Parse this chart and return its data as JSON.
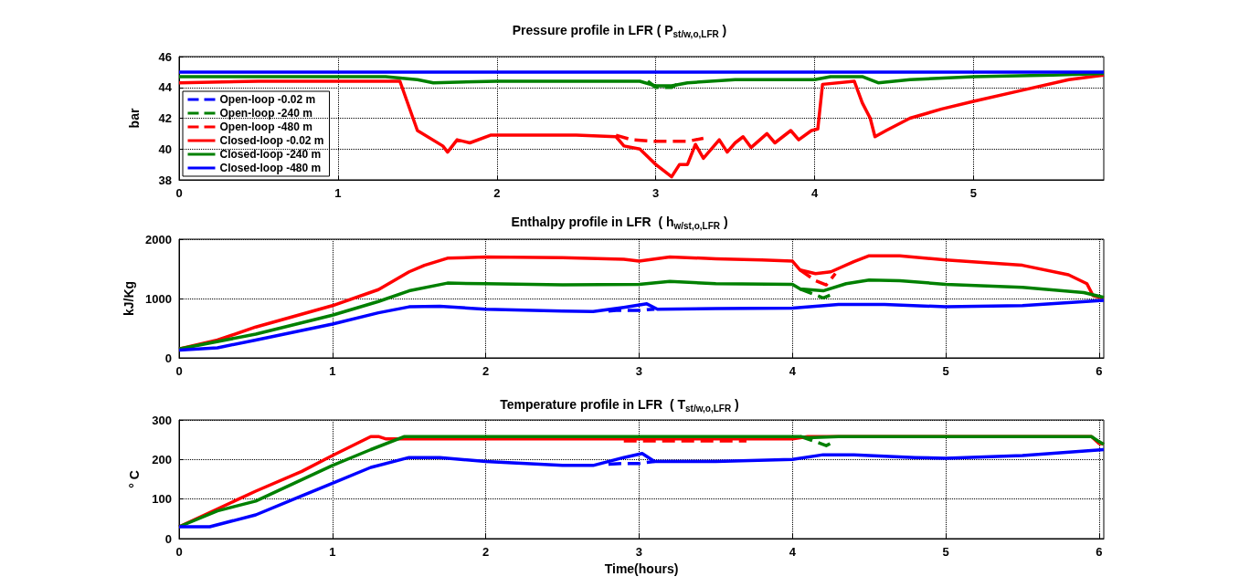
{
  "chart_data": [
    {
      "type": "line",
      "title": "Pressure profile in LFR ( P$_{st/w,o,LFR}$ )",
      "ylabel": "bar",
      "xlim": [
        0,
        5.82
      ],
      "xticks": [
        0,
        1,
        2,
        3,
        4,
        5
      ],
      "ylim": [
        38,
        46
      ],
      "yticks": [
        38,
        40,
        42,
        44,
        46
      ],
      "grid": true,
      "legend": "bottom left",
      "marker": "none",
      "series": [
        {
          "name": "Open-loop -0.02 m",
          "color": "#0000ff",
          "line_style": "dashed"
        },
        {
          "name": "Open-loop -240 m",
          "color": "#008000",
          "line_style": "dashed",
          "x": [
            2.95,
            3.0,
            3.1,
            3.15
          ],
          "values": [
            44.4,
            44.0,
            44.0,
            44.3
          ]
        },
        {
          "name": "Open-loop -480 m",
          "color": "#ff0000",
          "line_style": "dashed",
          "x": [
            2.75,
            2.85,
            3.0,
            3.2,
            3.3
          ],
          "values": [
            40.9,
            40.6,
            40.5,
            40.5,
            40.7
          ]
        },
        {
          "name": "Closed-loop -0.02 m",
          "color": "#ff0000",
          "line_style": "solid",
          "x": [
            0,
            0.5,
            1.0,
            1.39,
            1.5,
            1.66,
            1.69,
            1.75,
            1.83,
            1.96,
            2.5,
            2.75,
            2.8,
            2.9,
            3.0,
            3.1,
            3.15,
            3.2,
            3.25,
            3.3,
            3.4,
            3.45,
            3.5,
            3.55,
            3.6,
            3.7,
            3.75,
            3.85,
            3.9,
            3.98,
            4.02,
            4.05,
            4.25,
            4.3,
            4.35,
            4.38,
            4.45,
            4.6,
            4.8,
            5.0,
            5.3,
            5.6,
            5.82
          ],
          "values": [
            44.3,
            44.4,
            44.4,
            44.4,
            41.2,
            40.2,
            39.8,
            40.6,
            40.4,
            40.9,
            40.9,
            40.8,
            40.2,
            40.0,
            39.0,
            38.2,
            39.0,
            39.0,
            40.3,
            39.4,
            40.6,
            39.8,
            40.4,
            40.8,
            40.1,
            41.0,
            40.4,
            41.2,
            40.6,
            41.2,
            41.3,
            44.2,
            44.4,
            43.0,
            42.0,
            40.8,
            41.2,
            42.0,
            42.6,
            43.1,
            43.8,
            44.5,
            44.8
          ]
        },
        {
          "name": "Closed-loop -240 m",
          "color": "#008000",
          "line_style": "solid",
          "x": [
            0,
            1.3,
            1.5,
            1.6,
            2,
            2.5,
            2.9,
            3.0,
            3.1,
            3.2,
            3.5,
            4.0,
            4.1,
            4.3,
            4.4,
            4.6,
            5.0,
            5.5,
            5.82
          ],
          "values": [
            44.7,
            44.7,
            44.5,
            44.3,
            44.4,
            44.4,
            44.4,
            44.1,
            44.1,
            44.3,
            44.5,
            44.5,
            44.7,
            44.7,
            44.3,
            44.5,
            44.7,
            44.8,
            44.9
          ]
        },
        {
          "name": "Closed-loop -480 m",
          "color": "#0000ff",
          "line_style": "solid",
          "x": [
            0,
            5.82
          ],
          "values": [
            45,
            45
          ]
        }
      ]
    },
    {
      "type": "line",
      "title": "Enthalpy profile in LFR  ( h$_{w/st,o,LFR}$ )",
      "ylabel": "kJ/Kg",
      "xlim": [
        0,
        6.03
      ],
      "xticks": [
        0,
        1,
        2,
        3,
        4,
        5,
        6
      ],
      "ylim": [
        0,
        2000
      ],
      "yticks": [
        0,
        1000,
        2000
      ],
      "grid": true,
      "marker": "none",
      "series": [
        {
          "color": "#0000ff",
          "line_style": "dashed",
          "x": [
            2.8,
            2.85,
            3.0,
            3.1
          ],
          "values": [
            790,
            800,
            800,
            820
          ]
        },
        {
          "color": "#008000",
          "line_style": "dashed",
          "x": [
            4.05,
            4.15,
            4.2,
            4.25
          ],
          "values": [
            1160,
            1060,
            1010,
            1060
          ]
        },
        {
          "color": "#ff0000",
          "line_style": "dashed",
          "x": [
            4.05,
            4.15,
            4.22,
            4.28
          ],
          "values": [
            1480,
            1300,
            1230,
            1420
          ]
        },
        {
          "color": "#ff0000",
          "line_style": "solid",
          "x": [
            0,
            0.25,
            0.5,
            1.0,
            1.3,
            1.5,
            1.6,
            1.75,
            2.0,
            2.5,
            2.9,
            3.0,
            3.2,
            3.5,
            3.8,
            4.0,
            4.05,
            4.15,
            4.25,
            4.4,
            4.5,
            4.7,
            5.0,
            5.5,
            5.8,
            5.92,
            5.96,
            6.03
          ],
          "values": [
            150,
            300,
            520,
            880,
            1150,
            1450,
            1560,
            1680,
            1700,
            1690,
            1660,
            1630,
            1700,
            1670,
            1650,
            1630,
            1480,
            1420,
            1450,
            1620,
            1720,
            1720,
            1650,
            1560,
            1400,
            1250,
            1050,
            1000
          ]
        },
        {
          "color": "#008000",
          "line_style": "solid",
          "x": [
            0,
            0.5,
            1.0,
            1.3,
            1.5,
            1.75,
            2.0,
            2.5,
            3.0,
            3.2,
            3.5,
            4.0,
            4.05,
            4.2,
            4.35,
            4.5,
            4.7,
            5.0,
            5.5,
            5.9,
            6.03
          ],
          "values": [
            150,
            400,
            720,
            950,
            1130,
            1260,
            1250,
            1230,
            1240,
            1290,
            1250,
            1240,
            1160,
            1130,
            1250,
            1310,
            1300,
            1240,
            1190,
            1100,
            1020
          ]
        },
        {
          "color": "#0000ff",
          "line_style": "solid",
          "x": [
            0,
            0.25,
            0.5,
            1.0,
            1.3,
            1.5,
            1.7,
            2.0,
            2.5,
            2.7,
            2.9,
            3.05,
            3.12,
            3.5,
            4.0,
            4.3,
            4.6,
            5.0,
            5.5,
            6.03
          ],
          "values": [
            130,
            170,
            300,
            570,
            760,
            860,
            870,
            820,
            790,
            780,
            850,
            910,
            820,
            830,
            840,
            900,
            900,
            860,
            880,
            970
          ]
        }
      ]
    },
    {
      "type": "line",
      "title": "Temperature profile in LFR  ( T$_{st/w,o,LFR}$ )",
      "xlabel": "Time(hours)",
      "ylabel": "° C",
      "xlim": [
        0,
        6.03
      ],
      "xticks": [
        0,
        1,
        2,
        3,
        4,
        5,
        6
      ],
      "ylim": [
        0,
        300
      ],
      "yticks": [
        0,
        100,
        200,
        300
      ],
      "grid": true,
      "marker": "none",
      "series": [
        {
          "color": "#0000ff",
          "line_style": "dashed",
          "x": [
            2.8,
            2.9,
            3.0,
            3.1
          ],
          "values": [
            188,
            190,
            190,
            195
          ]
        },
        {
          "color": "#008000",
          "line_style": "dashed",
          "x": [
            4.05,
            4.15,
            4.22,
            4.27
          ],
          "values": [
            258,
            245,
            235,
            245
          ]
        },
        {
          "color": "#ff0000",
          "line_style": "dashed",
          "x": [
            2.9,
            3.7
          ],
          "values": [
            247,
            247
          ]
        },
        {
          "color": "#ff0000",
          "line_style": "solid",
          "x": [
            0,
            0.5,
            0.8,
            1.0,
            1.25,
            1.3,
            1.35,
            3.0,
            4.0,
            4.1,
            5.95,
            6.0,
            6.03
          ],
          "values": [
            30,
            120,
            170,
            210,
            258,
            258,
            252,
            252,
            252,
            258,
            258,
            240,
            240
          ]
        },
        {
          "color": "#008000",
          "line_style": "solid",
          "x": [
            0,
            0.25,
            0.5,
            0.75,
            1.0,
            1.25,
            1.47,
            4.05,
            4.1,
            4.3,
            5.95,
            6.0,
            6.03
          ],
          "values": [
            30,
            70,
            95,
            140,
            185,
            225,
            258,
            258,
            255,
            258,
            258,
            245,
            238
          ]
        },
        {
          "color": "#0000ff",
          "line_style": "solid",
          "x": [
            0,
            0.2,
            0.5,
            0.75,
            1.0,
            1.25,
            1.5,
            1.7,
            2.0,
            2.5,
            2.7,
            2.9,
            3.02,
            3.1,
            3.5,
            4.0,
            4.2,
            4.4,
            4.8,
            5.0,
            5.5,
            6.03
          ],
          "values": [
            30,
            30,
            60,
            100,
            140,
            180,
            205,
            205,
            195,
            185,
            185,
            205,
            215,
            195,
            195,
            200,
            212,
            212,
            205,
            203,
            210,
            225
          ]
        }
      ]
    }
  ]
}
